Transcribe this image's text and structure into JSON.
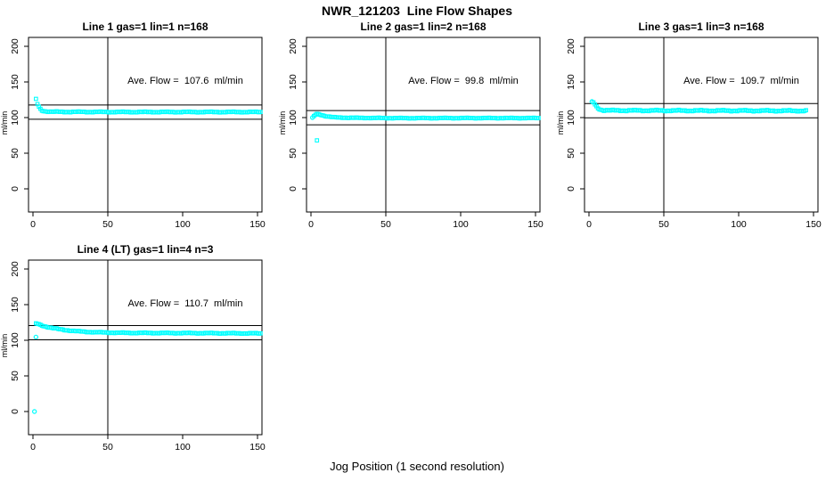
{
  "title": "NWR_121203  Line Flow Shapes",
  "xlabel": "Jog Position (1 second resolution)",
  "colors": {
    "series": "#00ffff",
    "axis": "#000000",
    "background": "#ffffff"
  },
  "chart_data": [
    {
      "type": "scatter",
      "title": "Line 1 gas=1 lin=1 n=168",
      "annotation": "Ave. Flow =  107.6  ml/min",
      "ave_flow": 107.6,
      "n": 168,
      "ylabel": "ml/min",
      "xticks": [
        0,
        50,
        100,
        150
      ],
      "yticks": [
        0,
        50,
        100,
        150,
        200
      ],
      "xlim": [
        0,
        153
      ],
      "ylim": [
        0,
        200
      ],
      "vline_x": 50,
      "hlines": [
        117.6,
        97.6
      ],
      "keypoints": [
        [
          2,
          126
        ],
        [
          3,
          119
        ],
        [
          4,
          115
        ],
        [
          5,
          112
        ],
        [
          6,
          110
        ],
        [
          8,
          108.8
        ],
        [
          12,
          108.2
        ],
        [
          20,
          108
        ],
        [
          60,
          107.8
        ],
        [
          100,
          107.8
        ],
        [
          152,
          107.8
        ]
      ],
      "jitter": 0.7,
      "outliers": []
    },
    {
      "type": "scatter",
      "title": "Line 2 gas=1 lin=2 n=168",
      "annotation": "Ave. Flow =  99.8  ml/min",
      "ave_flow": 99.8,
      "n": 168,
      "ylabel": "ml/min",
      "xticks": [
        0,
        50,
        100,
        150
      ],
      "yticks": [
        0,
        50,
        100,
        150,
        200
      ],
      "xlim": [
        0,
        153
      ],
      "ylim": [
        0,
        200
      ],
      "vline_x": 50,
      "hlines": [
        109.8,
        89.8
      ],
      "keypoints": [
        [
          2,
          102
        ],
        [
          3,
          104
        ],
        [
          4,
          105
        ],
        [
          6,
          104.3
        ],
        [
          8,
          103
        ],
        [
          10,
          102
        ],
        [
          13,
          101
        ],
        [
          16,
          100.3
        ],
        [
          20,
          100
        ],
        [
          30,
          99.6
        ],
        [
          60,
          99.2
        ],
        [
          100,
          99.3
        ],
        [
          152,
          99.3
        ]
      ],
      "jitter": 0.55,
      "outliers": [
        {
          "x": 1,
          "y": 100,
          "marker": "circle"
        },
        {
          "x": 4,
          "y": 68,
          "marker": "square"
        }
      ]
    },
    {
      "type": "scatter",
      "title": "Line 3 gas=1 lin=3 n=168",
      "annotation": "Ave. Flow =  109.7  ml/min",
      "ave_flow": 109.7,
      "n": 168,
      "ylabel": "ml/min",
      "xticks": [
        0,
        50,
        100,
        150
      ],
      "yticks": [
        0,
        50,
        100,
        150,
        200
      ],
      "xlim": [
        0,
        153
      ],
      "ylim": [
        0,
        200
      ],
      "vline_x": 50,
      "hlines": [
        119.7,
        99.7
      ],
      "keypoints": [
        [
          3,
          121.5
        ],
        [
          4,
          118
        ],
        [
          5,
          115.5
        ],
        [
          6,
          113.5
        ],
        [
          7,
          112
        ],
        [
          8,
          111
        ],
        [
          10,
          110.3
        ],
        [
          15,
          110
        ],
        [
          60,
          109.8
        ],
        [
          145,
          109.5
        ]
      ],
      "jitter": 1.1,
      "outliers": [
        {
          "x": 2,
          "y": 122.5,
          "marker": "circle"
        }
      ]
    },
    {
      "type": "scatter",
      "title": "Line 4 (LT) gas=1 lin=4 n=3",
      "annotation": "Ave. Flow =  110.7  ml/min",
      "ave_flow": 110.7,
      "n": 3,
      "ylabel": "ml/min",
      "xticks": [
        0,
        50,
        100,
        150
      ],
      "yticks": [
        0,
        50,
        100,
        150,
        200
      ],
      "xlim": [
        0,
        153
      ],
      "ylim": [
        0,
        200
      ],
      "vline_x": 50,
      "hlines": [
        120.7,
        100.7
      ],
      "keypoints": [
        [
          2,
          123.5
        ],
        [
          3,
          123
        ],
        [
          5,
          121.5
        ],
        [
          8,
          119.5
        ],
        [
          12,
          117.5
        ],
        [
          16,
          116
        ],
        [
          20,
          114.8
        ],
        [
          25,
          113.5
        ],
        [
          30,
          112.5
        ],
        [
          36,
          111.8
        ],
        [
          42,
          111.2
        ],
        [
          50,
          110.8
        ],
        [
          60,
          110.4
        ],
        [
          80,
          110.2
        ],
        [
          110,
          110
        ],
        [
          152,
          109.6
        ]
      ],
      "jitter": 0.7,
      "outliers": [
        {
          "x": 1,
          "y": 0,
          "marker": "circle"
        },
        {
          "x": 2,
          "y": 104.5,
          "marker": "circle"
        }
      ]
    }
  ]
}
